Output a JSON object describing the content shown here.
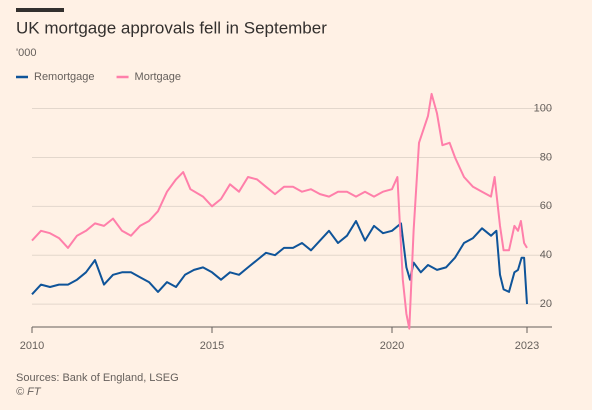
{
  "chart_data": {
    "type": "line",
    "title": "UK mortgage approvals fell in September",
    "subtitle": "'000",
    "source": "Sources: Bank of England, LSEG",
    "credit": "© FT",
    "xlim": [
      2010,
      2023.75
    ],
    "xticks": [
      2010,
      2015,
      2020,
      {
        "value": 2023.75,
        "label": "2023"
      }
    ],
    "ylim": [
      9,
      108
    ],
    "yticks": [
      20,
      40,
      60,
      80,
      100
    ],
    "grid": true,
    "legend": "top-left",
    "series": [
      {
        "name": "Remortgage",
        "color": "#0f5499",
        "x": [
          2010,
          2010.25,
          2010.5,
          2010.75,
          2011,
          2011.25,
          2011.5,
          2011.75,
          2012,
          2012.25,
          2012.5,
          2012.75,
          2013,
          2013.25,
          2013.5,
          2013.75,
          2014,
          2014.25,
          2014.5,
          2014.75,
          2015,
          2015.25,
          2015.5,
          2015.75,
          2016,
          2016.25,
          2016.5,
          2016.75,
          2017,
          2017.25,
          2017.5,
          2017.75,
          2018,
          2018.25,
          2018.5,
          2018.75,
          2019,
          2019.25,
          2019.5,
          2019.75,
          2020,
          2020.25,
          2020.4,
          2020.5,
          2020.6,
          2020.8,
          2021,
          2021.25,
          2021.5,
          2021.75,
          2022,
          2022.25,
          2022.5,
          2022.75,
          2022.9,
          2023,
          2023.1,
          2023.25,
          2023.4,
          2023.5,
          2023.6,
          2023.67,
          2023.75
        ],
        "values": [
          24,
          28,
          27,
          28,
          28,
          30,
          33,
          38,
          28,
          32,
          33,
          33,
          31,
          29,
          25,
          29,
          27,
          32,
          34,
          35,
          33,
          30,
          33,
          32,
          35,
          38,
          41,
          40,
          43,
          43,
          45,
          42,
          46,
          50,
          45,
          48,
          54,
          46,
          52,
          49,
          50,
          53,
          35,
          30,
          37,
          33,
          36,
          34,
          35,
          39,
          45,
          47,
          51,
          48,
          50,
          32,
          26,
          25,
          33,
          34,
          39,
          39,
          20
        ]
      },
      {
        "name": "Mortgage",
        "color": "#ff7faa",
        "x": [
          2010,
          2010.25,
          2010.5,
          2010.75,
          2011,
          2011.25,
          2011.5,
          2011.75,
          2012,
          2012.25,
          2012.5,
          2012.75,
          2013,
          2013.25,
          2013.5,
          2013.75,
          2014,
          2014.2,
          2014.4,
          2014.75,
          2015,
          2015.25,
          2015.5,
          2015.75,
          2016,
          2016.25,
          2016.5,
          2016.75,
          2017,
          2017.25,
          2017.5,
          2017.75,
          2018,
          2018.25,
          2018.5,
          2018.75,
          2019,
          2019.25,
          2019.5,
          2019.75,
          2020,
          2020.15,
          2020.3,
          2020.4,
          2020.48,
          2020.6,
          2020.75,
          2021,
          2021.1,
          2021.25,
          2021.4,
          2021.6,
          2021.75,
          2022,
          2022.25,
          2022.5,
          2022.75,
          2022.85,
          2023,
          2023.1,
          2023.25,
          2023.4,
          2023.5,
          2023.58,
          2023.67,
          2023.75
        ],
        "values": [
          46,
          50,
          49,
          47,
          43,
          48,
          50,
          53,
          52,
          55,
          50,
          48,
          52,
          54,
          58,
          66,
          71,
          74,
          67,
          64,
          60,
          63,
          69,
          66,
          72,
          71,
          68,
          65,
          68,
          68,
          66,
          67,
          65,
          64,
          66,
          66,
          64,
          66,
          64,
          66,
          67,
          72,
          30,
          16,
          10,
          50,
          86,
          97,
          106,
          98,
          85,
          86,
          80,
          72,
          68,
          66,
          64,
          72,
          52,
          42,
          42,
          52,
          50,
          54,
          45,
          43
        ]
      }
    ]
  }
}
